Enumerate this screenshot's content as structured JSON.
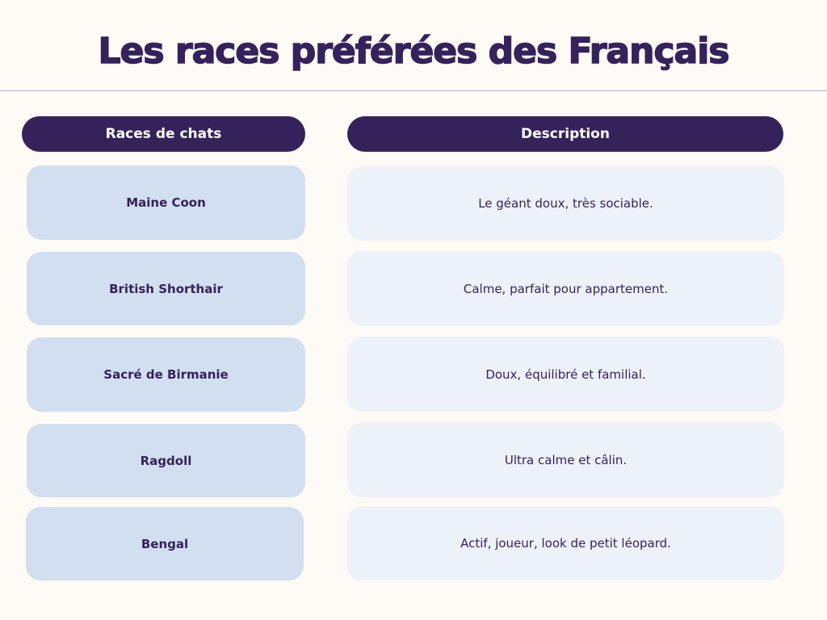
{
  "title": "Les races préférées des Français",
  "headers": {
    "breeds": "Races de chats",
    "description": "Description"
  },
  "rows": [
    {
      "breed": "Maine Coon",
      "description": "Le géant doux, très sociable."
    },
    {
      "breed": "British Shorthair",
      "description": "Calme, parfait pour appartement."
    },
    {
      "breed": "Sacré de Birmanie",
      "description": "Doux, équilibré et familial."
    },
    {
      "breed": "Ragdoll",
      "description": "Ultra calme et câlin."
    },
    {
      "breed": "Bengal",
      "description": "Actif, joueur, look de petit léopard."
    }
  ],
  "colors": {
    "background": "#fefbf6",
    "header": "#36225a",
    "breed_cell": "#d2dff0",
    "description_cell": "#edf1f8"
  }
}
